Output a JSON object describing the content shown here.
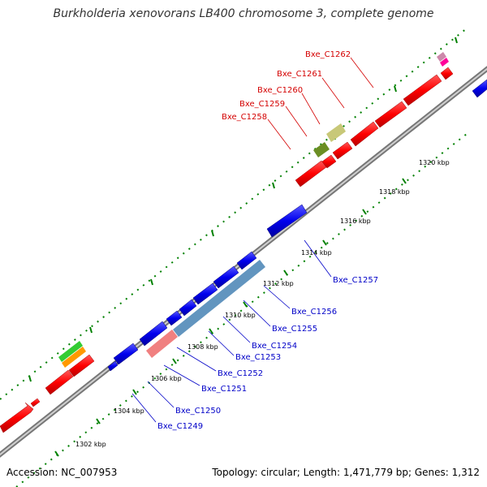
{
  "title": "Burkholderia xenovorans LB400 chromosome 3, complete genome",
  "footer": {
    "accession": "Accession: NC_007953",
    "summary": "Topology: circular; Length: 1,471,779 bp; Genes: 1,312"
  },
  "ticks": [
    "1302 kbp",
    "1304 kbp",
    "1306 kbp",
    "1308 kbp",
    "1310 kbp",
    "1312 kbp",
    "1314 kbp",
    "1316 kbp",
    "1318 kbp",
    "1320 kbp"
  ],
  "red_labels": [
    "Bxe_C1258",
    "Bxe_C1259",
    "Bxe_C1260",
    "Bxe_C1261",
    "Bxe_C1262"
  ],
  "blue_labels": [
    "Bxe_C1249",
    "Bxe_C1250",
    "Bxe_C1251",
    "Bxe_C1252",
    "Bxe_C1253",
    "Bxe_C1254",
    "Bxe_C1255",
    "Bxe_C1256",
    "Bxe_C1257"
  ],
  "colors": {
    "forward_gene": "#ff0000",
    "reverse_gene": "#0000ee",
    "backbone": "#999999",
    "tick": "#008000"
  }
}
